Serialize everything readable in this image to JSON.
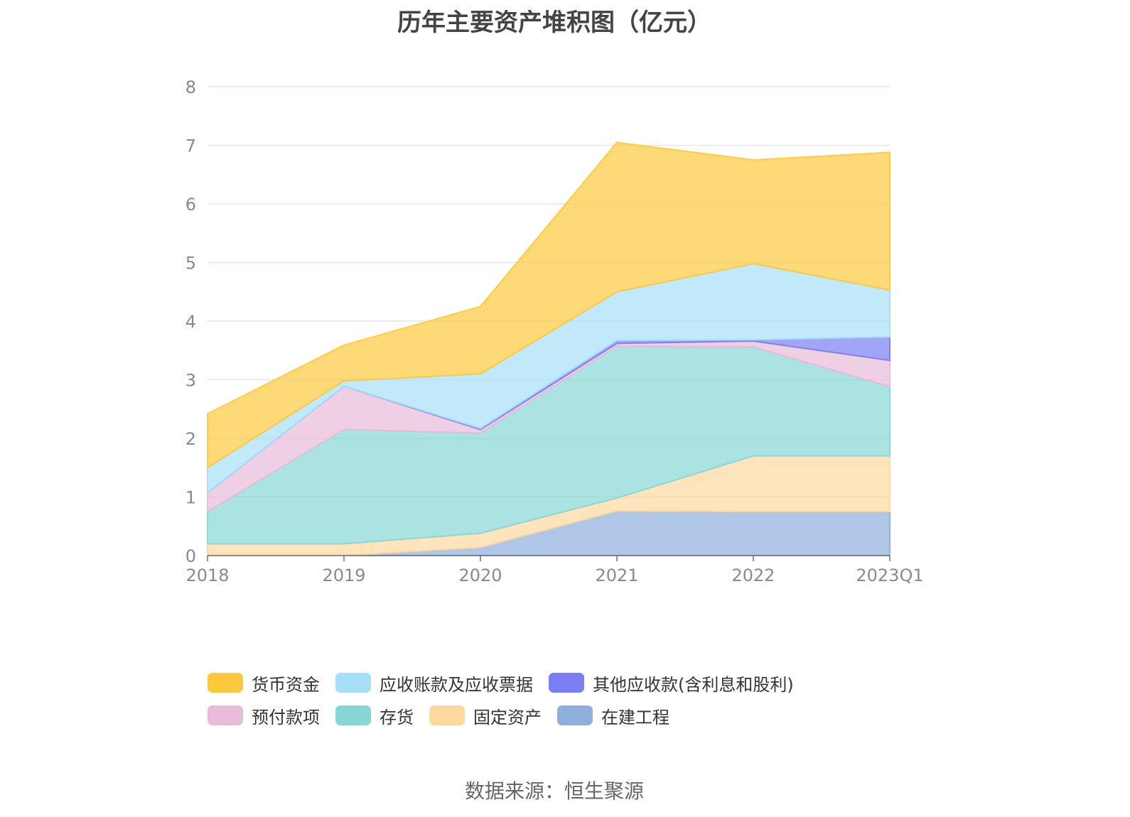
{
  "title": "历年主要资产堆积图（亿元）",
  "source": "数据来源：恒生聚源",
  "chart_data": {
    "type": "area",
    "stacked": true,
    "title": "历年主要资产堆积图（亿元）",
    "xlabel": "",
    "ylabel": "",
    "categories": [
      "2018",
      "2019",
      "2020",
      "2021",
      "2022",
      "2023Q1"
    ],
    "ylim": [
      0,
      8
    ],
    "yticks": [
      0,
      1,
      2,
      3,
      4,
      5,
      6,
      7,
      8
    ],
    "grid": true,
    "legend_position": "bottom",
    "series": [
      {
        "name": "在建工程",
        "color": "#8eaedb",
        "values": [
          0.0,
          0.0,
          0.14,
          0.76,
          0.75,
          0.75
        ]
      },
      {
        "name": "固定资产",
        "color": "#fdd9a0",
        "values": [
          0.2,
          0.2,
          0.24,
          0.22,
          0.95,
          0.95
        ]
      },
      {
        "name": "存货",
        "color": "#88d5d5",
        "values": [
          0.55,
          1.95,
          1.71,
          2.59,
          1.86,
          1.18
        ]
      },
      {
        "name": "预付款项",
        "color": "#e8bbd9",
        "values": [
          0.32,
          0.74,
          0.06,
          0.05,
          0.1,
          0.45
        ]
      },
      {
        "name": "其他应收款(含利息和股利)",
        "color": "#7b7ef2",
        "values": [
          0.0,
          0.0,
          0.02,
          0.05,
          0.02,
          0.4
        ]
      },
      {
        "name": "应收账款及应收票据",
        "color": "#a8dff8",
        "values": [
          0.43,
          0.09,
          0.93,
          0.83,
          1.3,
          0.8
        ]
      },
      {
        "name": "货币资金",
        "color": "#fcc93e",
        "values": [
          0.92,
          0.61,
          1.15,
          2.55,
          1.77,
          2.35
        ]
      }
    ]
  },
  "legend_order": [
    {
      "name": "货币资金",
      "color": "#fcc93e"
    },
    {
      "name": "应收账款及应收票据",
      "color": "#a8dff8"
    },
    {
      "name": "其他应收款(含利息和股利)",
      "color": "#7b7ef2"
    },
    {
      "name": "预付款项",
      "color": "#e8bbd9"
    },
    {
      "name": "存货",
      "color": "#88d5d5"
    },
    {
      "name": "固定资产",
      "color": "#fdd9a0"
    },
    {
      "name": "在建工程",
      "color": "#8eaedb"
    }
  ]
}
